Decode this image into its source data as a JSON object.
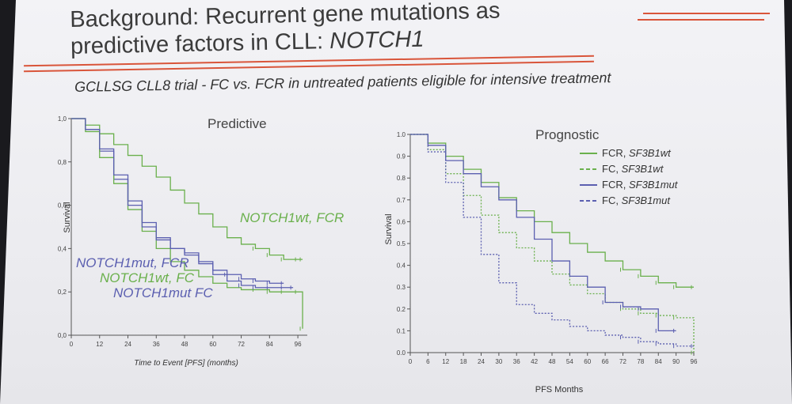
{
  "slide": {
    "title_line1": "Background: Recurrent gene mutations as",
    "title_line2_prefix": "predictive factors in CLL: ",
    "title_line2_gene": "NOTCH1",
    "subtitle": "GCLLSG CLL8 trial - FC vs. FCR in untreated patients eligible for intensive treatment",
    "accent_color": "#d9553a"
  },
  "chart_data": [
    {
      "type": "line",
      "title": "Predictive",
      "xlabel": "Time to Event [PFS] (months)",
      "ylabel": "Survival",
      "xlim": [
        0,
        100
      ],
      "ylim": [
        0,
        1.0
      ],
      "x_ticks": [
        0,
        12,
        24,
        36,
        48,
        60,
        72,
        84,
        96
      ],
      "y_ticks": [
        0.0,
        0.2,
        0.4,
        0.6,
        0.8,
        1.0
      ],
      "y_tick_labels": [
        "0,0",
        "0,2",
        "0,4",
        "0,6",
        "0,8",
        "1,0"
      ],
      "annotations": [
        {
          "text": "NOTCH1wt, FCR",
          "color": "#6ab04c"
        },
        {
          "text": "NOTCH1mut, FCR",
          "color": "#5b5fb0"
        },
        {
          "text": "NOTCH1wt, FC",
          "color": "#6ab04c"
        },
        {
          "text": "NOTCH1mut FC",
          "color": "#5b5fb0"
        }
      ],
      "series": [
        {
          "name": "NOTCH1wt, FCR",
          "color": "#6ab04c",
          "style": "solid",
          "x": [
            0,
            6,
            12,
            18,
            24,
            30,
            36,
            42,
            48,
            54,
            60,
            66,
            72,
            78,
            84,
            90,
            96,
            98
          ],
          "y": [
            1.0,
            0.97,
            0.93,
            0.88,
            0.83,
            0.78,
            0.73,
            0.67,
            0.61,
            0.56,
            0.5,
            0.45,
            0.42,
            0.4,
            0.37,
            0.35,
            0.35,
            0.35
          ]
        },
        {
          "name": "NOTCH1mut, FCR",
          "color": "#5b5fb0",
          "style": "solid",
          "x": [
            0,
            6,
            12,
            18,
            24,
            30,
            36,
            42,
            48,
            54,
            60,
            66,
            72,
            78,
            84,
            90
          ],
          "y": [
            1.0,
            0.95,
            0.85,
            0.72,
            0.62,
            0.52,
            0.45,
            0.4,
            0.38,
            0.34,
            0.3,
            0.28,
            0.26,
            0.25,
            0.24,
            0.24
          ]
        },
        {
          "name": "NOTCH1wt, FC",
          "color": "#6ab04c",
          "style": "solid",
          "x": [
            0,
            6,
            12,
            18,
            24,
            30,
            36,
            42,
            48,
            54,
            60,
            66,
            72,
            78,
            84,
            90,
            96,
            98
          ],
          "y": [
            1.0,
            0.94,
            0.82,
            0.7,
            0.58,
            0.48,
            0.4,
            0.34,
            0.3,
            0.27,
            0.24,
            0.22,
            0.21,
            0.21,
            0.2,
            0.2,
            0.2,
            0.03
          ]
        },
        {
          "name": "NOTCH1mut FC",
          "color": "#5b5fb0",
          "style": "solid",
          "x": [
            0,
            6,
            12,
            18,
            24,
            30,
            36,
            42,
            48,
            54,
            60,
            66,
            72,
            78,
            84,
            90,
            94
          ],
          "y": [
            1.0,
            0.95,
            0.86,
            0.74,
            0.6,
            0.5,
            0.44,
            0.4,
            0.37,
            0.33,
            0.28,
            0.25,
            0.23,
            0.22,
            0.22,
            0.22,
            0.22
          ]
        }
      ]
    },
    {
      "type": "line",
      "title": "Prognostic",
      "xlabel": "PFS Months",
      "ylabel": "Survival",
      "xlim": [
        0,
        96
      ],
      "ylim": [
        0,
        1.0
      ],
      "x_ticks": [
        0,
        6,
        12,
        18,
        24,
        30,
        36,
        42,
        48,
        54,
        60,
        66,
        72,
        78,
        84,
        90,
        96
      ],
      "y_ticks": [
        0.0,
        0.1,
        0.2,
        0.3,
        0.4,
        0.5,
        0.6,
        0.7,
        0.8,
        0.9,
        1.0
      ],
      "y_tick_labels": [
        "0.0",
        "0.1",
        "0.2",
        "0.3",
        "0.4",
        "0.5",
        "0.6",
        "0.7",
        "0.8",
        "0.9",
        "1.0"
      ],
      "legend": {
        "position": "top-right",
        "entries": [
          {
            "prefix": "FCR, ",
            "gene": "SF3B1wt",
            "color": "#6ab04c",
            "style": "solid"
          },
          {
            "prefix": "FC, ",
            "gene": "SF3B1wt",
            "color": "#6ab04c",
            "style": "dashed"
          },
          {
            "prefix": "FCR, ",
            "gene": "SF3B1mut",
            "color": "#5b5fb0",
            "style": "solid"
          },
          {
            "prefix": "FC, ",
            "gene": "SF3B1mut",
            "color": "#5b5fb0",
            "style": "dashed"
          }
        ]
      },
      "series": [
        {
          "color": "#6ab04c",
          "style": "solid",
          "x": [
            0,
            6,
            12,
            18,
            24,
            30,
            36,
            42,
            48,
            54,
            60,
            66,
            72,
            78,
            84,
            90,
            96
          ],
          "y": [
            1.0,
            0.96,
            0.9,
            0.84,
            0.78,
            0.71,
            0.65,
            0.6,
            0.55,
            0.5,
            0.46,
            0.42,
            0.38,
            0.35,
            0.32,
            0.3,
            0.3
          ]
        },
        {
          "color": "#6ab04c",
          "style": "dashed",
          "x": [
            0,
            6,
            12,
            18,
            24,
            30,
            36,
            42,
            48,
            54,
            60,
            66,
            72,
            78,
            84,
            90,
            96
          ],
          "y": [
            1.0,
            0.93,
            0.82,
            0.72,
            0.63,
            0.55,
            0.48,
            0.42,
            0.36,
            0.31,
            0.27,
            0.23,
            0.2,
            0.18,
            0.17,
            0.16,
            0.0
          ]
        },
        {
          "color": "#5b5fb0",
          "style": "solid",
          "x": [
            0,
            6,
            12,
            18,
            24,
            30,
            36,
            42,
            48,
            54,
            60,
            66,
            72,
            78,
            84,
            90
          ],
          "y": [
            1.0,
            0.95,
            0.88,
            0.82,
            0.76,
            0.7,
            0.62,
            0.52,
            0.42,
            0.35,
            0.3,
            0.23,
            0.21,
            0.2,
            0.1,
            0.1
          ]
        },
        {
          "color": "#5b5fb0",
          "style": "dashed",
          "x": [
            0,
            6,
            12,
            18,
            24,
            30,
            36,
            42,
            48,
            54,
            60,
            66,
            72,
            78,
            84,
            90,
            96
          ],
          "y": [
            1.0,
            0.92,
            0.78,
            0.62,
            0.45,
            0.32,
            0.22,
            0.18,
            0.15,
            0.12,
            0.1,
            0.08,
            0.07,
            0.05,
            0.04,
            0.03,
            0.03
          ]
        }
      ]
    }
  ]
}
